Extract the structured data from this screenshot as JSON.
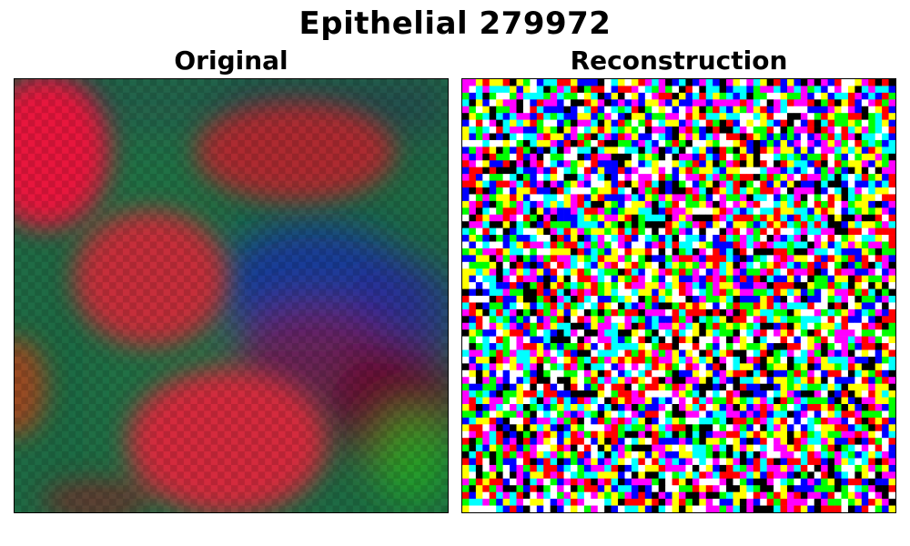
{
  "figure": {
    "title": "Epithelial 279972"
  },
  "panels": [
    {
      "title": "Original"
    },
    {
      "title": "Reconstruction"
    }
  ],
  "colors": {
    "background": "#ffffff",
    "frame": "#000000",
    "original_base_green": "#1f6b45",
    "original_nucleus_red": "#e8163c",
    "original_blue_region": "#1a33a8",
    "noise_palette": [
      "#ff0000",
      "#00ff00",
      "#0000ff",
      "#ffff00",
      "#ff00ff",
      "#00ffff",
      "#ffffff",
      "#000000"
    ]
  }
}
